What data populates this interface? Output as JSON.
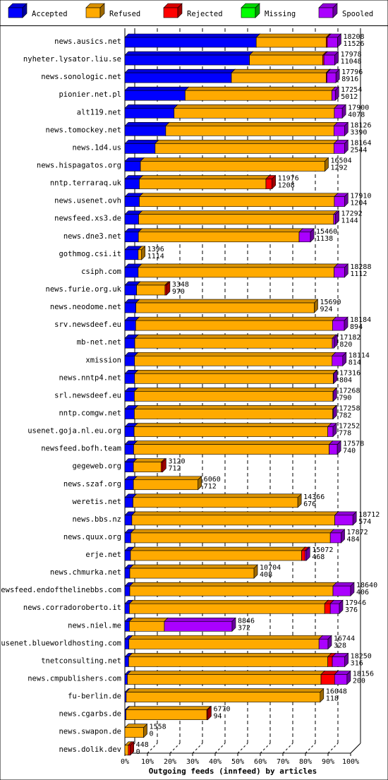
{
  "chart_data": {
    "type": "bar",
    "orientation": "horizontal",
    "stacked": true,
    "xlabel": "Outgoing feeds (innfeed) by articles",
    "x_ticks": [
      "0%",
      "10%",
      "20%",
      "30%",
      "40%",
      "50%",
      "60%",
      "70%",
      "80%",
      "90%",
      "100%"
    ],
    "xlim": [
      0,
      100
    ],
    "grid": true,
    "legend_position": "top",
    "legend": [
      {
        "name": "Accepted",
        "color": "#0000ff"
      },
      {
        "name": "Refused",
        "color": "#ffaa00"
      },
      {
        "name": "Rejected",
        "color": "#ff0000"
      },
      {
        "name": "Missing",
        "color": "#00ff00"
      },
      {
        "name": "Spooled",
        "color": "#aa00ff"
      }
    ],
    "series_order": [
      "accepted",
      "refused",
      "rejected",
      "missing",
      "spooled"
    ],
    "bars": [
      {
        "site": "news.ausics.net",
        "offered": "18208",
        "accepted_label": "11526",
        "accepted": 58.2,
        "refused": 31.0,
        "rejected": 0.5,
        "missing": 0,
        "spooled": 4.5
      },
      {
        "site": "nyheter.lysator.liu.se",
        "offered": "17978",
        "accepted_label": "11048",
        "accepted": 55.2,
        "refused": 32.5,
        "rejected": 0.5,
        "missing": 0,
        "spooled": 4.8
      },
      {
        "site": "news.sonologic.net",
        "offered": "17796",
        "accepted_label": "8916",
        "accepted": 47.2,
        "refused": 42.0,
        "rejected": 0.3,
        "missing": 0,
        "spooled": 4.0
      },
      {
        "site": "pionier.net.pl",
        "offered": "17254",
        "accepted_label": "5012",
        "accepted": 26.7,
        "refused": 65.0,
        "rejected": 0,
        "missing": 0,
        "spooled": 1.5
      },
      {
        "site": "alt119.net",
        "offered": "17900",
        "accepted_label": "4078",
        "accepted": 21.8,
        "refused": 71.0,
        "rejected": 0,
        "missing": 0,
        "spooled": 3.5
      },
      {
        "site": "news.tomockey.net",
        "offered": "18126",
        "accepted_label": "3390",
        "accepted": 18.1,
        "refused": 74.5,
        "rejected": 0,
        "missing": 0,
        "spooled": 4.7
      },
      {
        "site": "news.1d4.us",
        "offered": "18164",
        "accepted_label": "2544",
        "accepted": 13.4,
        "refused": 79.2,
        "rejected": 0,
        "missing": 0,
        "spooled": 4.7
      },
      {
        "site": "news.hispagatos.org",
        "offered": "16504",
        "accepted_label": "1292",
        "accepted": 6.9,
        "refused": 81.7,
        "rejected": 0,
        "missing": 0,
        "spooled": 0
      },
      {
        "site": "nntp.terraraq.uk",
        "offered": "11976",
        "accepted_label": "1208",
        "accepted": 6.4,
        "refused": 56.1,
        "rejected": 2.7,
        "missing": 0,
        "spooled": 0
      },
      {
        "site": "news.usenet.ovh",
        "offered": "17910",
        "accepted_label": "1204",
        "accepted": 6.4,
        "refused": 86.4,
        "rejected": 0,
        "missing": 0,
        "spooled": 4.5
      },
      {
        "site": "newsfeed.xs3.de",
        "offered": "17292",
        "accepted_label": "1144",
        "accepted": 6.1,
        "refused": 86.4,
        "rejected": 0,
        "missing": 0,
        "spooled": 0.8
      },
      {
        "site": "news.dne3.net",
        "offered": "15460",
        "accepted_label": "1138",
        "accepted": 6.0,
        "refused": 71.2,
        "rejected": 0,
        "missing": 0,
        "spooled": 5.0
      },
      {
        "site": "gothmog.csi.it",
        "offered": "1396",
        "accepted_label": "1114",
        "accepted": 5.9,
        "refused": 1.5,
        "rejected": 0,
        "missing": 0,
        "spooled": 0
      },
      {
        "site": "csiph.com",
        "offered": "18288",
        "accepted_label": "1112",
        "accepted": 5.9,
        "refused": 86.8,
        "rejected": 0,
        "missing": 0,
        "spooled": 4.6
      },
      {
        "site": "news.furie.org.uk",
        "offered": "3348",
        "accepted_label": "970",
        "accepted": 5.2,
        "refused": 12.6,
        "rejected": 0.6,
        "missing": 0,
        "spooled": 0
      },
      {
        "site": "news.neodome.net",
        "offered": "15690",
        "accepted_label": "924",
        "accepted": 4.9,
        "refused": 79.0,
        "rejected": 0,
        "missing": 0,
        "spooled": 0
      },
      {
        "site": "srv.newsdeef.eu",
        "offered": "18184",
        "accepted_label": "894",
        "accepted": 4.8,
        "refused": 87.2,
        "rejected": 0,
        "missing": 0,
        "spooled": 5.2
      },
      {
        "site": "mb-net.net",
        "offered": "17182",
        "accepted_label": "820",
        "accepted": 4.4,
        "refused": 87.5,
        "rejected": 0,
        "missing": 0,
        "spooled": 0.7
      },
      {
        "site": "xmission",
        "offered": "18114",
        "accepted_label": "814",
        "accepted": 4.3,
        "refused": 87.5,
        "rejected": 0,
        "missing": 0,
        "spooled": 4.7
      },
      {
        "site": "news.nntp4.net",
        "offered": "17316",
        "accepted_label": "804",
        "accepted": 4.3,
        "refused": 88.0,
        "rejected": 0,
        "missing": 0,
        "spooled": 0.2
      },
      {
        "site": "srl.newsdeef.eu",
        "offered": "17268",
        "accepted_label": "790",
        "accepted": 4.2,
        "refused": 88.0,
        "rejected": 0,
        "missing": 0,
        "spooled": 0.1
      },
      {
        "site": "nntp.comgw.net",
        "offered": "17258",
        "accepted_label": "782",
        "accepted": 4.2,
        "refused": 87.9,
        "rejected": 0,
        "missing": 0,
        "spooled": 0.2
      },
      {
        "site": "usenet.goja.nl.eu.org",
        "offered": "17252",
        "accepted_label": "778",
        "accepted": 4.1,
        "refused": 85.8,
        "rejected": 0,
        "missing": 0,
        "spooled": 2.3
      },
      {
        "site": "newsfeed.bofh.team",
        "offered": "17578",
        "accepted_label": "740",
        "accepted": 3.9,
        "refused": 86.6,
        "rejected": 0,
        "missing": 0,
        "spooled": 3.6
      },
      {
        "site": "gegeweb.org",
        "offered": "3120",
        "accepted_label": "712",
        "accepted": 3.8,
        "refused": 12.3,
        "rejected": 0.6,
        "missing": 0,
        "spooled": 0
      },
      {
        "site": "news.szaf.org",
        "offered": "6060",
        "accepted_label": "712",
        "accepted": 3.8,
        "refused": 28.6,
        "rejected": 0,
        "missing": 0,
        "spooled": 0
      },
      {
        "site": "weretis.net",
        "offered": "14366",
        "accepted_label": "676",
        "accepted": 3.6,
        "refused": 73.0,
        "rejected": 0,
        "missing": 0,
        "spooled": 0
      },
      {
        "site": "news.bbs.nz",
        "offered": "18712",
        "accepted_label": "574",
        "accepted": 3.1,
        "refused": 89.9,
        "rejected": 0,
        "missing": 0,
        "spooled": 8.0
      },
      {
        "site": "news.quux.org",
        "offered": "17872",
        "accepted_label": "484",
        "accepted": 2.6,
        "refused": 88.4,
        "rejected": 0,
        "missing": 0,
        "spooled": 4.8
      },
      {
        "site": "erje.net",
        "offered": "15072",
        "accepted_label": "468",
        "accepted": 2.5,
        "refused": 75.8,
        "rejected": 1.6,
        "missing": 0,
        "spooled": 0.5
      },
      {
        "site": "news.chmurka.net",
        "offered": "10704",
        "accepted_label": "408",
        "accepted": 2.2,
        "refused": 55.0,
        "rejected": 0,
        "missing": 0,
        "spooled": 0
      },
      {
        "site": "newsfeed.endofthelinebbs.com",
        "offered": "18640",
        "accepted_label": "406",
        "accepted": 2.2,
        "refused": 90.0,
        "rejected": 0,
        "missing": 0,
        "spooled": 7.8
      },
      {
        "site": "news.corradoroberto.it",
        "offered": "17946",
        "accepted_label": "376",
        "accepted": 2.0,
        "refused": 86.5,
        "rejected": 2.5,
        "missing": 0,
        "spooled": 4.0
      },
      {
        "site": "news.niel.me",
        "offered": "8846",
        "accepted_label": "372",
        "accepted": 2.0,
        "refused": 15.5,
        "rejected": 0,
        "missing": 0,
        "spooled": 30.0
      },
      {
        "site": "usenet.blueworldhosting.com",
        "offered": "16744",
        "accepted_label": "328",
        "accepted": 1.8,
        "refused": 84.2,
        "rejected": 0,
        "missing": 0,
        "spooled": 4.0
      },
      {
        "site": "tnetconsulting.net",
        "offered": "18250",
        "accepted_label": "316",
        "accepted": 1.7,
        "refused": 88.2,
        "rejected": 2.0,
        "missing": 0,
        "spooled": 5.5
      },
      {
        "site": "news.cmpublishers.com",
        "offered": "18156",
        "accepted_label": "200",
        "accepted": 1.1,
        "refused": 85.8,
        "rejected": 6.0,
        "missing": 0,
        "spooled": 5.5
      },
      {
        "site": "fu-berlin.de",
        "offered": "16048",
        "accepted_label": "118",
        "accepted": 0.6,
        "refused": 85.9,
        "rejected": 0,
        "missing": 0,
        "spooled": 0
      },
      {
        "site": "news.cgarbs.de",
        "offered": "6770",
        "accepted_label": "94",
        "accepted": 0.5,
        "refused": 35.8,
        "rejected": 0.4,
        "missing": 0,
        "spooled": 0
      },
      {
        "site": "news.swapon.de",
        "offered": "1558",
        "accepted_label": "0",
        "accepted": 0,
        "refused": 8.3,
        "rejected": 0,
        "missing": 0,
        "spooled": 0
      },
      {
        "site": "news.dolik.dev",
        "offered": "448",
        "accepted_label": "0",
        "accepted": 0,
        "refused": 1.5,
        "rejected": 0.9,
        "missing": 0,
        "spooled": 0
      }
    ]
  }
}
